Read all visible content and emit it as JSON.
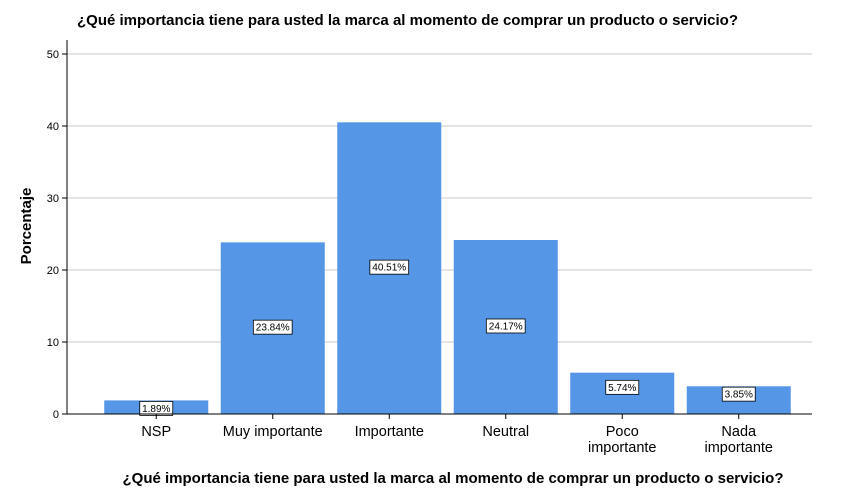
{
  "chart_data": {
    "type": "bar",
    "title": "¿Qué importancia tiene para usted la marca al momento de comprar un producto o servicio?",
    "xlabel": "¿Qué importancia tiene para usted la marca al momento de comprar un producto o servicio?",
    "ylabel": "Porcentaje",
    "categories": [
      [
        "NSP"
      ],
      [
        "Muy importante"
      ],
      [
        "Importante"
      ],
      [
        "Neutral"
      ],
      [
        "Poco",
        "importante"
      ],
      [
        "Nada",
        "importante"
      ]
    ],
    "values": [
      1.89,
      23.84,
      40.51,
      24.17,
      5.74,
      3.85
    ],
    "data_labels": [
      "1.89%",
      "23.84%",
      "40.51%",
      "24.17%",
      "5.74%",
      "3.85%"
    ],
    "yticks": [
      0,
      10,
      20,
      30,
      40,
      50
    ],
    "ylim": [
      0,
      50
    ],
    "grid": true,
    "bar_color": "#5596e6",
    "grid_color": "#c8c8c8"
  }
}
